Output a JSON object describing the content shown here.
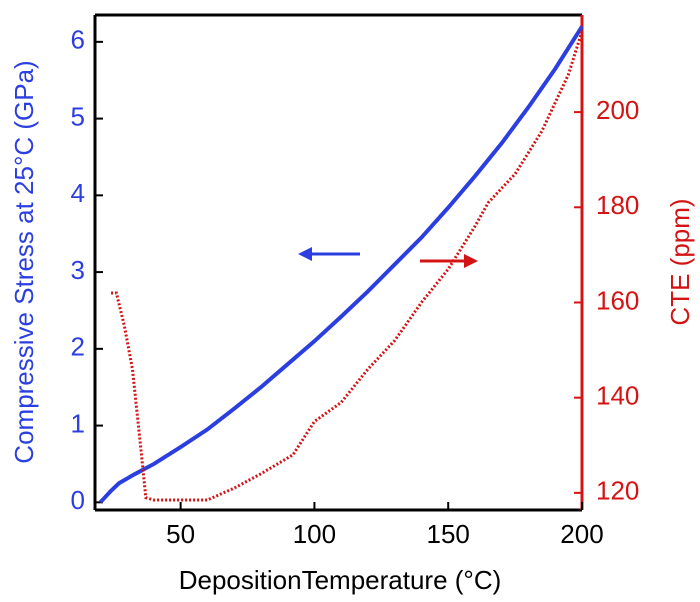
{
  "chart_data": {
    "type": "line",
    "xlabel": "DepositionTemperature (°C)",
    "ylabel": "Compressive Stress at 25°C (GPa)",
    "y2label": "CTE (ppm)",
    "xlim": [
      18,
      200
    ],
    "xticks": [
      50,
      100,
      150,
      200
    ],
    "ylim": [
      -0.1,
      6.35
    ],
    "yticks": [
      0,
      1,
      2,
      3,
      4,
      5,
      6
    ],
    "y2lim": [
      116.4,
      220.4
    ],
    "y2ticks": [
      120,
      140,
      160,
      180,
      200
    ],
    "series": [
      {
        "color": "#2b3ee0",
        "axis": "y",
        "style": "solid",
        "x": [
          20,
          24,
          27,
          33,
          40,
          50,
          60,
          70,
          80,
          90,
          100,
          110,
          120,
          130,
          140,
          150,
          160,
          170,
          180,
          190,
          200
        ],
        "values": [
          0,
          0.15,
          0.25,
          0.37,
          0.5,
          0.72,
          0.95,
          1.22,
          1.5,
          1.8,
          2.1,
          2.42,
          2.75,
          3.1,
          3.45,
          3.84,
          4.25,
          4.68,
          5.15,
          5.65,
          6.2
        ]
      },
      {
        "color": "#d41414",
        "axis": "y2",
        "style": "dotted",
        "x": [
          24,
          26,
          29,
          32,
          35,
          37,
          40,
          50,
          60,
          70,
          80,
          92,
          100,
          110,
          120,
          130,
          140,
          150,
          160,
          165,
          175,
          185,
          195,
          200
        ],
        "values": [
          162,
          162,
          155,
          146,
          130,
          119,
          118.5,
          118.5,
          118.5,
          121,
          124,
          128,
          135,
          139,
          146,
          152,
          160,
          167,
          176,
          181,
          187,
          196,
          208,
          217
        ]
      }
    ]
  }
}
